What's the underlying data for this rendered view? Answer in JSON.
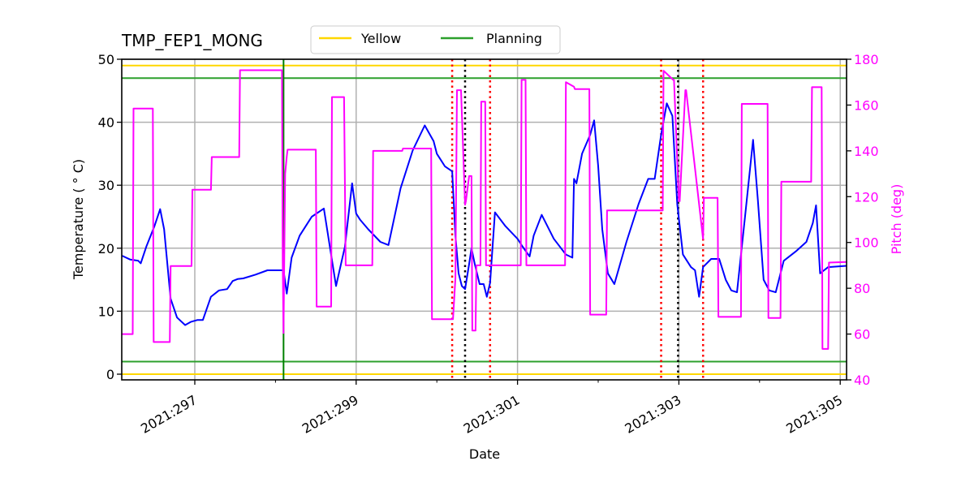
{
  "chart_data": {
    "type": "line",
    "title": "TMP_FEP1_MONG",
    "xlabel": "Date",
    "ylabel": "Temperature ($^\\circ$C)",
    "ylabel_display": "Temperature ( ° C)",
    "y2label": "Pitch (deg)",
    "xlim": [
      296.1,
      305.08
    ],
    "ylim": [
      -0.9,
      50
    ],
    "y2lim": [
      40,
      180
    ],
    "x_ticks": [
      297,
      299,
      301,
      303,
      305
    ],
    "x_minor_ticks": [
      298,
      300,
      302,
      304
    ],
    "x_tick_labels": [
      "2021:297",
      "2021:299",
      "2021:301",
      "2021:303",
      "2021:305"
    ],
    "y_ticks": [
      0,
      10,
      20,
      30,
      40,
      50
    ],
    "y2_ticks": [
      40,
      60,
      80,
      100,
      120,
      140,
      160,
      180
    ],
    "grid": true,
    "legend": {
      "position": "upper center (above plot)",
      "entries": [
        {
          "label": "Yellow",
          "color": "#ffd700"
        },
        {
          "label": "Planning",
          "color": "#2ca02c"
        }
      ]
    },
    "limits": {
      "yellow": [
        49.0,
        0.0
      ],
      "planning": [
        47.0,
        2.0
      ]
    },
    "vertical_lines": [
      {
        "x": 298.1,
        "color": "#008000",
        "style": "solid",
        "name": "now-marker"
      },
      {
        "x": 300.19,
        "color": "#ff0000",
        "style": "dotted"
      },
      {
        "x": 300.35,
        "color": "#000000",
        "style": "dotted"
      },
      {
        "x": 300.66,
        "color": "#ff0000",
        "style": "dotted"
      },
      {
        "x": 302.78,
        "color": "#ff0000",
        "style": "dotted"
      },
      {
        "x": 302.99,
        "color": "#000000",
        "style": "dotted"
      },
      {
        "x": 303.3,
        "color": "#ff0000",
        "style": "dotted"
      }
    ],
    "series": [
      {
        "name": "Temperature",
        "axis": "left",
        "color": "#0000ff",
        "x": [
          296.1,
          296.2,
          296.3,
          296.33,
          296.4,
          296.5,
          296.57,
          296.62,
          296.7,
          296.78,
          296.88,
          296.95,
          297.03,
          297.1,
          297.2,
          297.3,
          297.4,
          297.47,
          297.53,
          297.6,
          297.75,
          297.9,
          298.1,
          298.14,
          298.2,
          298.3,
          298.45,
          298.6,
          298.75,
          298.86,
          298.95,
          299.0,
          299.05,
          299.15,
          299.3,
          299.4,
          299.55,
          299.7,
          299.85,
          299.96,
          300.0,
          300.05,
          300.1,
          300.19,
          300.23,
          300.27,
          300.31,
          300.35,
          300.4,
          300.43,
          300.47,
          300.53,
          300.58,
          300.62,
          300.66,
          300.72,
          300.85,
          301.0,
          301.06,
          301.15,
          301.2,
          301.3,
          301.45,
          301.6,
          301.68,
          301.7,
          301.73,
          301.8,
          301.9,
          301.95,
          302.0,
          302.05,
          302.12,
          302.2,
          302.35,
          302.5,
          302.62,
          302.7,
          302.78,
          302.85,
          302.92,
          302.98,
          303.05,
          303.15,
          303.2,
          303.25,
          303.3,
          303.4,
          303.5,
          303.58,
          303.65,
          303.72,
          303.82,
          303.92,
          303.98,
          304.05,
          304.12,
          304.2,
          304.3,
          304.45,
          304.58,
          304.66,
          304.7,
          304.75,
          304.85,
          305.08
        ],
        "y": [
          18.8,
          18.2,
          18.0,
          17.6,
          20.3,
          23.5,
          26.2,
          23.0,
          12.0,
          9.0,
          7.8,
          8.3,
          8.6,
          8.6,
          12.3,
          13.3,
          13.5,
          14.8,
          15.1,
          15.2,
          15.8,
          16.5,
          16.5,
          12.8,
          18.5,
          22.0,
          25.0,
          26.3,
          14.0,
          20.2,
          30.3,
          25.5,
          24.5,
          23.0,
          21.0,
          20.5,
          29.5,
          35.5,
          39.5,
          37.0,
          35.0,
          34.0,
          33.0,
          32.2,
          22.0,
          16.0,
          14.0,
          13.5,
          17.5,
          20.0,
          17.5,
          14.3,
          14.3,
          12.3,
          14.5,
          25.7,
          23.5,
          21.5,
          20.3,
          18.7,
          22.0,
          25.3,
          21.5,
          19.0,
          18.5,
          31.0,
          30.3,
          35.0,
          38.0,
          40.3,
          33.0,
          23.0,
          16.0,
          14.3,
          21.0,
          27.0,
          31.0,
          31.0,
          38.0,
          43.0,
          41.0,
          27.0,
          19.0,
          17.0,
          16.5,
          12.3,
          17.0,
          18.3,
          18.3,
          15.0,
          13.3,
          13.0,
          25.0,
          37.2,
          27.5,
          15.0,
          13.3,
          13.0,
          18.0,
          19.5,
          21.0,
          24.0,
          26.8,
          16.0,
          17.0,
          17.2
        ]
      },
      {
        "name": "Pitch",
        "axis": "right",
        "color": "#ff00ff",
        "x": [
          296.1,
          296.23,
          296.24,
          296.48,
          296.49,
          296.69,
          296.7,
          296.96,
          296.97,
          297.2,
          297.21,
          297.55,
          297.56,
          298.08,
          298.09,
          298.1,
          298.12,
          298.14,
          298.15,
          298.5,
          298.51,
          298.69,
          298.7,
          298.85,
          298.87,
          298.88,
          299.2,
          299.21,
          299.57,
          299.58,
          299.93,
          299.94,
          300.2,
          300.23,
          300.25,
          300.3,
          300.35,
          300.36,
          300.4,
          300.43,
          300.44,
          300.48,
          300.49,
          300.54,
          300.55,
          300.6,
          300.61,
          300.66,
          300.67,
          301.04,
          301.05,
          301.1,
          301.11,
          301.59,
          301.6,
          301.7,
          301.71,
          301.89,
          301.9,
          302.1,
          302.11,
          302.8,
          302.81,
          302.93,
          302.94,
          303.0,
          303.01,
          303.08,
          303.09,
          303.3,
          303.31,
          303.48,
          303.49,
          303.77,
          303.78,
          304.1,
          304.11,
          304.26,
          304.27,
          304.64,
          304.65,
          304.77,
          304.78,
          304.85,
          304.86,
          305.08
        ],
        "y": [
          60.0,
          60.0,
          158.5,
          158.5,
          56.5,
          56.5,
          89.7,
          89.7,
          123.0,
          123.0,
          137.3,
          137.3,
          175.2,
          175.2,
          92.0,
          60.5,
          130.0,
          137.5,
          140.5,
          140.5,
          72.0,
          72.0,
          163.5,
          163.5,
          90.0,
          90.0,
          90.0,
          140.0,
          140.0,
          141.0,
          141.0,
          66.5,
          66.5,
          84.5,
          166.5,
          166.5,
          116.5,
          118.0,
          129.0,
          129.0,
          61.5,
          61.5,
          90.0,
          90.0,
          161.5,
          161.5,
          90.0,
          90.0,
          90.0,
          90.0,
          171.0,
          171.0,
          90.0,
          90.0,
          170.0,
          168.0,
          167.0,
          167.0,
          68.5,
          68.5,
          114.0,
          114.0,
          175.0,
          171.0,
          171.0,
          118.0,
          118.0,
          166.5,
          166.5,
          101.5,
          119.5,
          119.5,
          67.5,
          67.5,
          160.5,
          160.5,
          67.0,
          67.0,
          126.5,
          126.5,
          167.8,
          167.8,
          53.5,
          53.5,
          91.2,
          91.5
        ]
      }
    ]
  }
}
